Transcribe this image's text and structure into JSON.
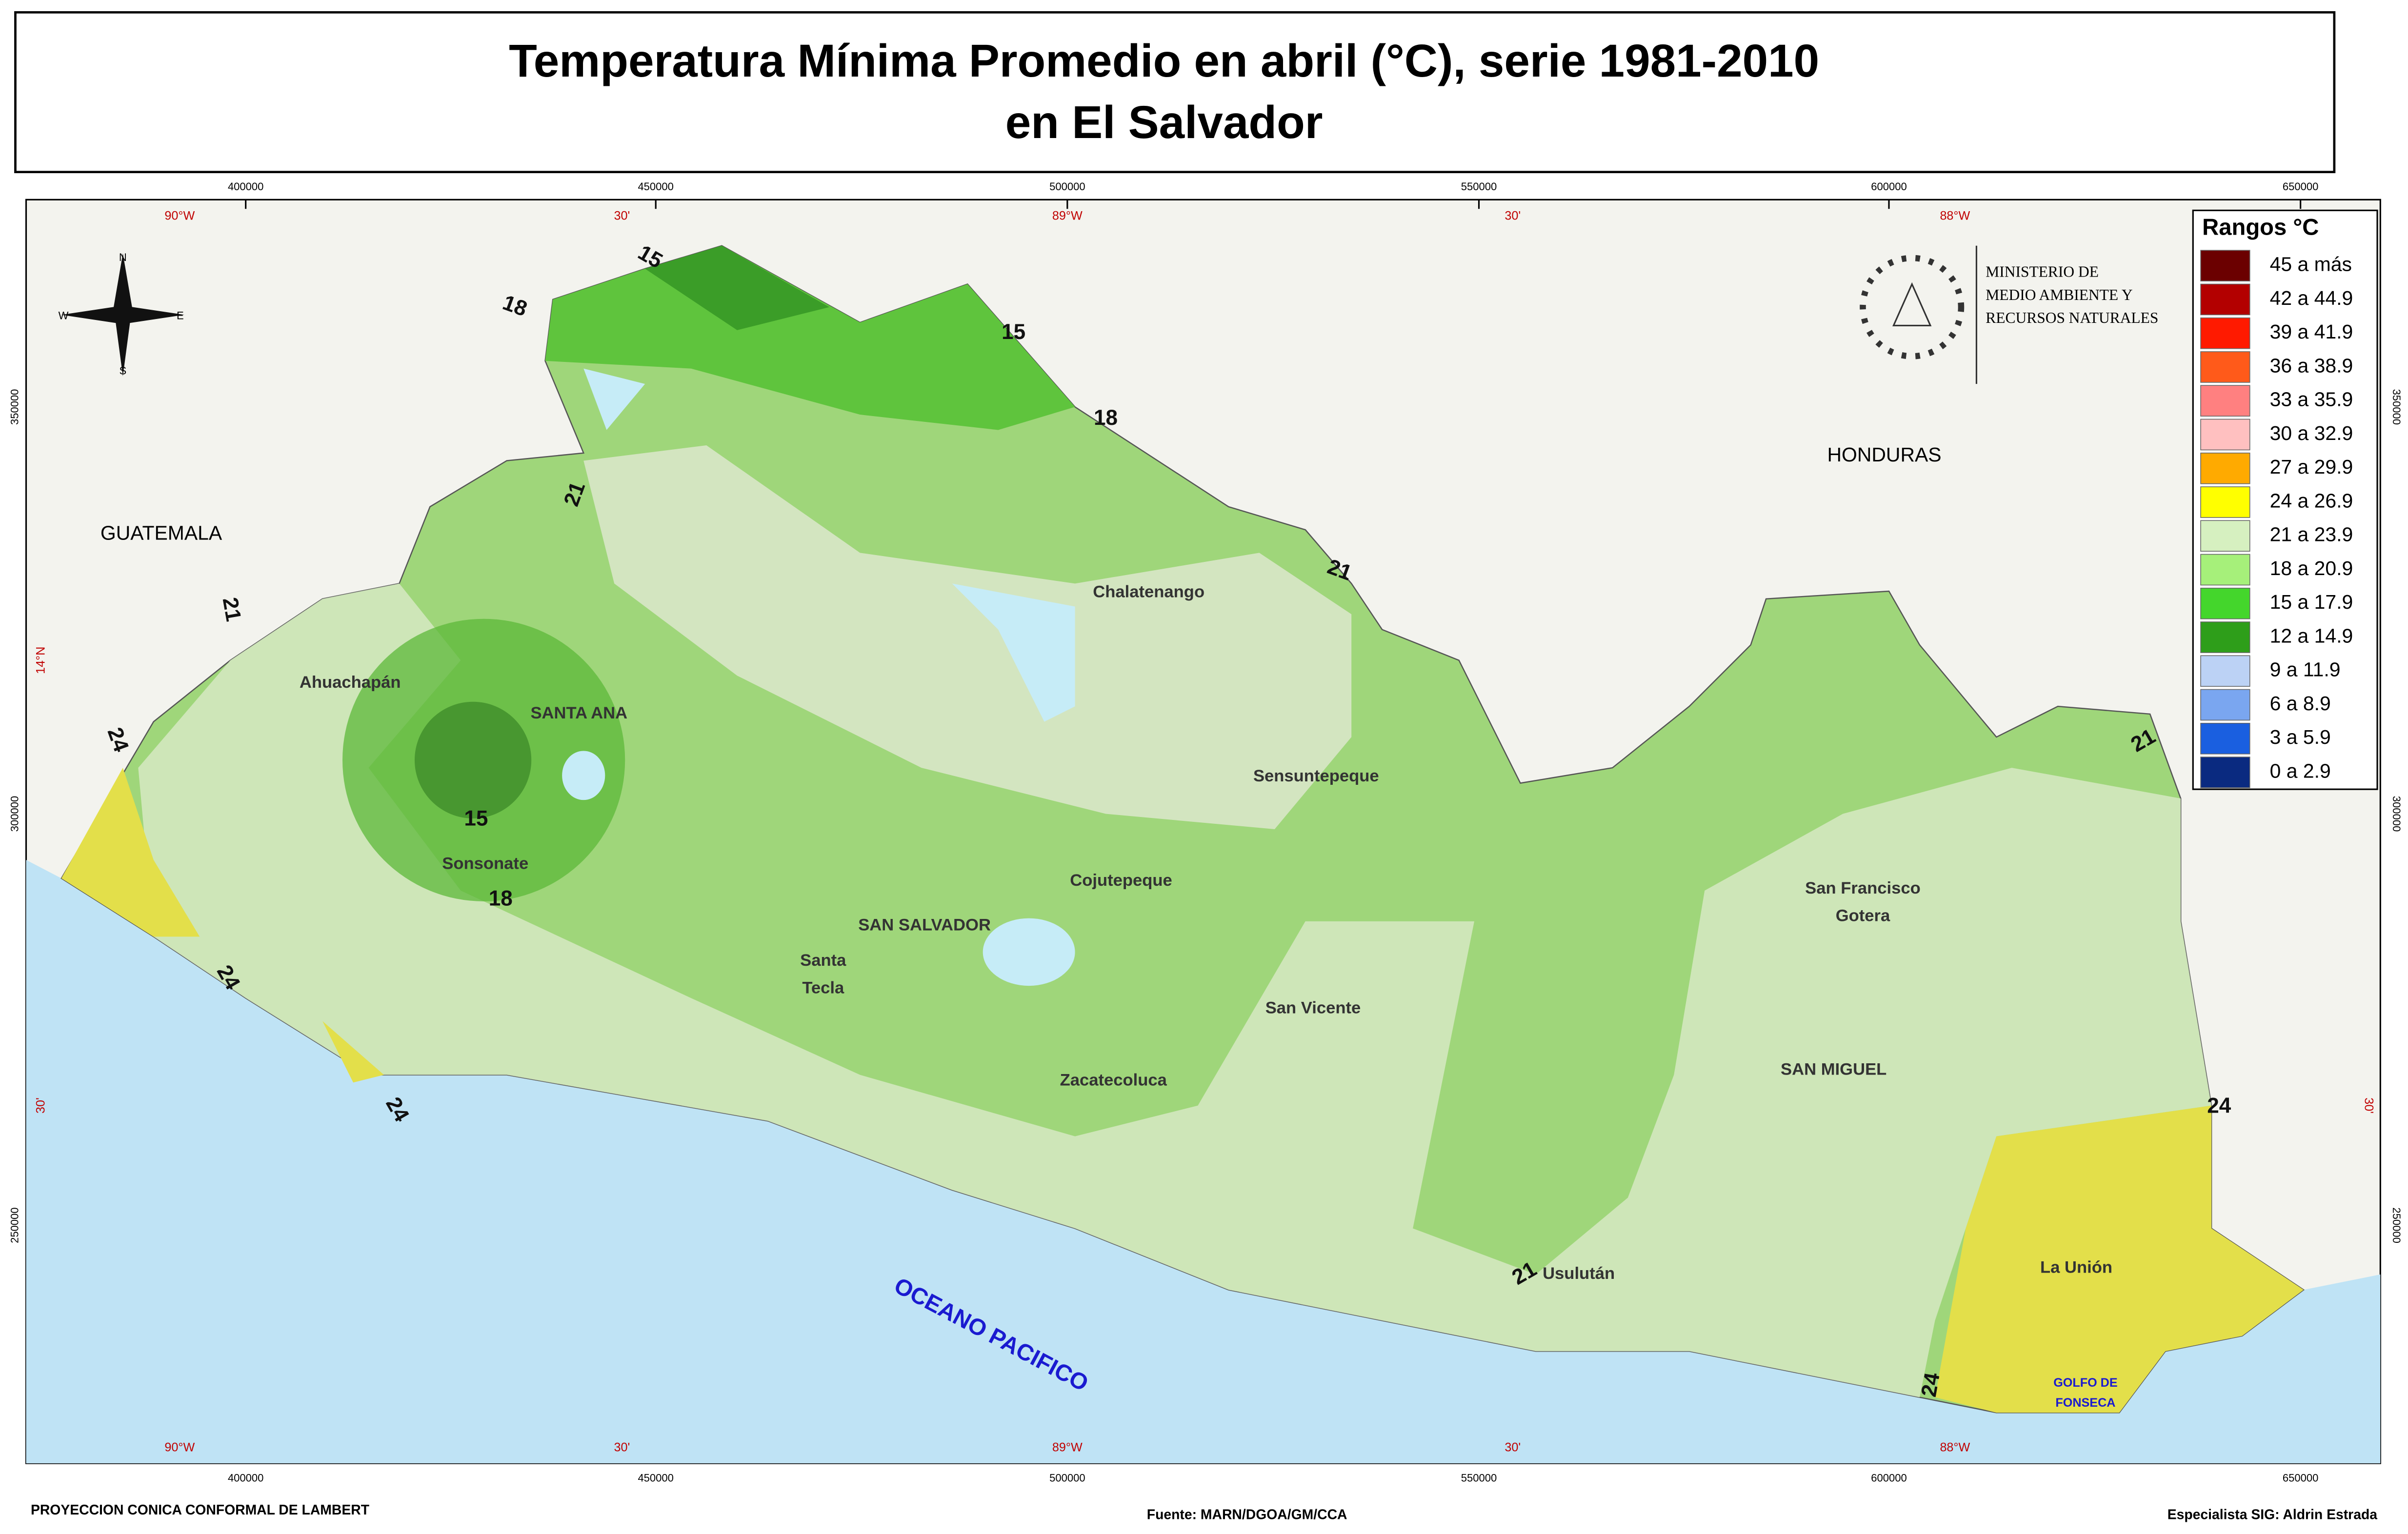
{
  "header": {
    "title_line1": "Temperatura Mínima Promedio en abril (°C), serie 1981-2010",
    "title_line2": "en El Salvador"
  },
  "graticule": {
    "projected_x": [
      "400000",
      "450000",
      "500000",
      "550000",
      "600000",
      "650000"
    ],
    "degrees_x": [
      "90°W",
      "30'",
      "89°W",
      "30'",
      "88°W"
    ],
    "projected_y": [
      "350000",
      "300000",
      "250000"
    ],
    "degrees_y": [
      "14°N",
      "30'"
    ]
  },
  "compass": {
    "north": "N",
    "south": "S",
    "east": "E",
    "west": "W"
  },
  "ministry": {
    "lines": [
      "MINISTERIO DE",
      "MEDIO AMBIENTE Y",
      "RECURSOS NATURALES"
    ]
  },
  "legend": {
    "title": "Rangos °C",
    "items": [
      {
        "label": "45 a más",
        "color": "#6b0000"
      },
      {
        "label": "42 a 44.9",
        "color": "#b30000"
      },
      {
        "label": "39 a 41.9",
        "color": "#ff1a00"
      },
      {
        "label": "36 a 38.9",
        "color": "#ff5a1a"
      },
      {
        "label": "33 a 35.9",
        "color": "#ff8080"
      },
      {
        "label": "30 a 32.9",
        "color": "#ffc0c0"
      },
      {
        "label": "27 a 29.9",
        "color": "#ffaa00"
      },
      {
        "label": "24 a 26.9",
        "color": "#ffff00"
      },
      {
        "label": "21 a 23.9",
        "color": "#d6f0c0"
      },
      {
        "label": "18 a 20.9",
        "color": "#a6f07a"
      },
      {
        "label": "15 a 17.9",
        "color": "#44d62c"
      },
      {
        "label": "12 a 14.9",
        "color": "#2e9e1a"
      },
      {
        "label": "9 a 11.9",
        "color": "#bcd2f5"
      },
      {
        "label": "6 a 8.9",
        "color": "#7aa6f0"
      },
      {
        "label": "3 a 5.9",
        "color": "#1a5fe0"
      },
      {
        "label": "0 a 2.9",
        "color": "#0a2a80"
      }
    ]
  },
  "places": {
    "countries": [
      "GUATEMALA",
      "HONDURAS"
    ],
    "ocean": "OCEANO PACIFICO",
    "gulf": [
      "GOLFO DE",
      "FONSECA"
    ],
    "cities": [
      "Chalatenango",
      "Ahuachapán",
      "SANTA ANA",
      "Sensuntepeque",
      "Sonsonate",
      "Cojutepeque",
      "SAN SALVADOR",
      "Santa",
      "Tecla",
      "San Vicente",
      "Zacatecoluca",
      "San Francisco",
      "Gotera",
      "SAN MIGUEL",
      "Usulután",
      "La Unión"
    ]
  },
  "isotherms": [
    "15",
    "18",
    "15",
    "18",
    "21",
    "21",
    "21",
    "15",
    "18",
    "24",
    "24",
    "24",
    "21",
    "24",
    "24",
    "21"
  ],
  "footer": {
    "projection": "PROYECCION CONICA CONFORMAL DE LAMBERT",
    "source": "Fuente: MARN/DGOA/GM/CCA",
    "author": "Especialista SIG: Aldrin Estrada"
  }
}
